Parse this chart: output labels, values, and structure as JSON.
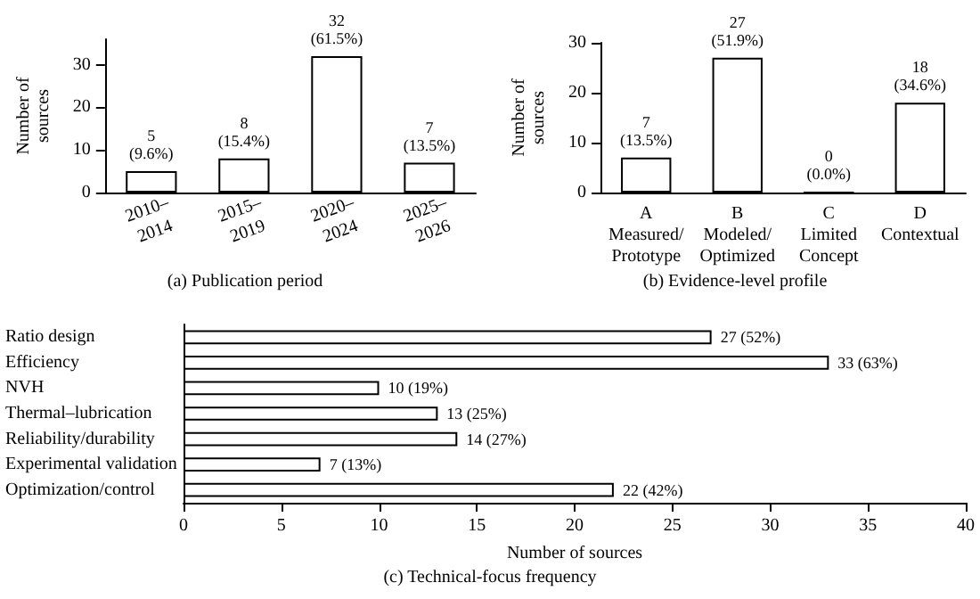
{
  "chart_data": [
    {
      "type": "bar",
      "title": "(a) Publication period",
      "ylabel": "Number of\nsources",
      "categories": [
        "2010–\n2014",
        "2015–\n2019",
        "2020–\n2024",
        "2025–\n2026"
      ],
      "values": [
        5,
        8,
        32,
        7
      ],
      "color": "#ffffff",
      "value_labels": [
        "5\n(9.6%)",
        "8\n(15.4%)",
        "32\n(61.5%)",
        "7\n(13.5%)"
      ],
      "ylim": [
        0,
        36
      ],
      "yticks": [
        0,
        10,
        20,
        30
      ],
      "grid": false
    },
    {
      "type": "bar",
      "title": "(b) Evidence-level profile",
      "ylabel": "Number of\nsources",
      "categories": [
        "A\nMeasured/\nPrototype",
        "B\nModeled/\nOptimized",
        "C\nLimited\nConcept",
        "D\nContextual"
      ],
      "values": [
        7,
        27,
        0,
        18
      ],
      "colors": [
        "#ffffff",
        "#ffffff",
        "#000000",
        "#ffffff"
      ],
      "value_labels": [
        "7\n(13.5%)",
        "27\n(51.9%)",
        "0\n(0.0%)",
        "18\n(34.6%)"
      ],
      "ylim": [
        0,
        30
      ],
      "yticks": [
        0,
        10,
        20,
        30
      ],
      "grid": false
    },
    {
      "type": "bar",
      "orientation": "horizontal",
      "title": "(c) Technical-focus frequency",
      "xlabel": "Number of sources",
      "categories": [
        "Ratio design",
        "Efficiency",
        "NVH",
        "Thermal–lubrication",
        "Reliability/durability",
        "Experimental validation",
        "Optimization/control"
      ],
      "values": [
        27,
        33,
        10,
        13,
        14,
        7,
        22
      ],
      "color": "#ffffff",
      "value_labels": [
        "27 (52%)",
        "33 (63%)",
        "10 (19%)",
        "13 (25%)",
        "14 (27%)",
        "7 (13%)",
        "22 (42%)"
      ],
      "xlim": [
        0,
        40
      ],
      "xticks": [
        0,
        5,
        10,
        15,
        20,
        25,
        30,
        35,
        40
      ],
      "grid": false
    }
  ]
}
